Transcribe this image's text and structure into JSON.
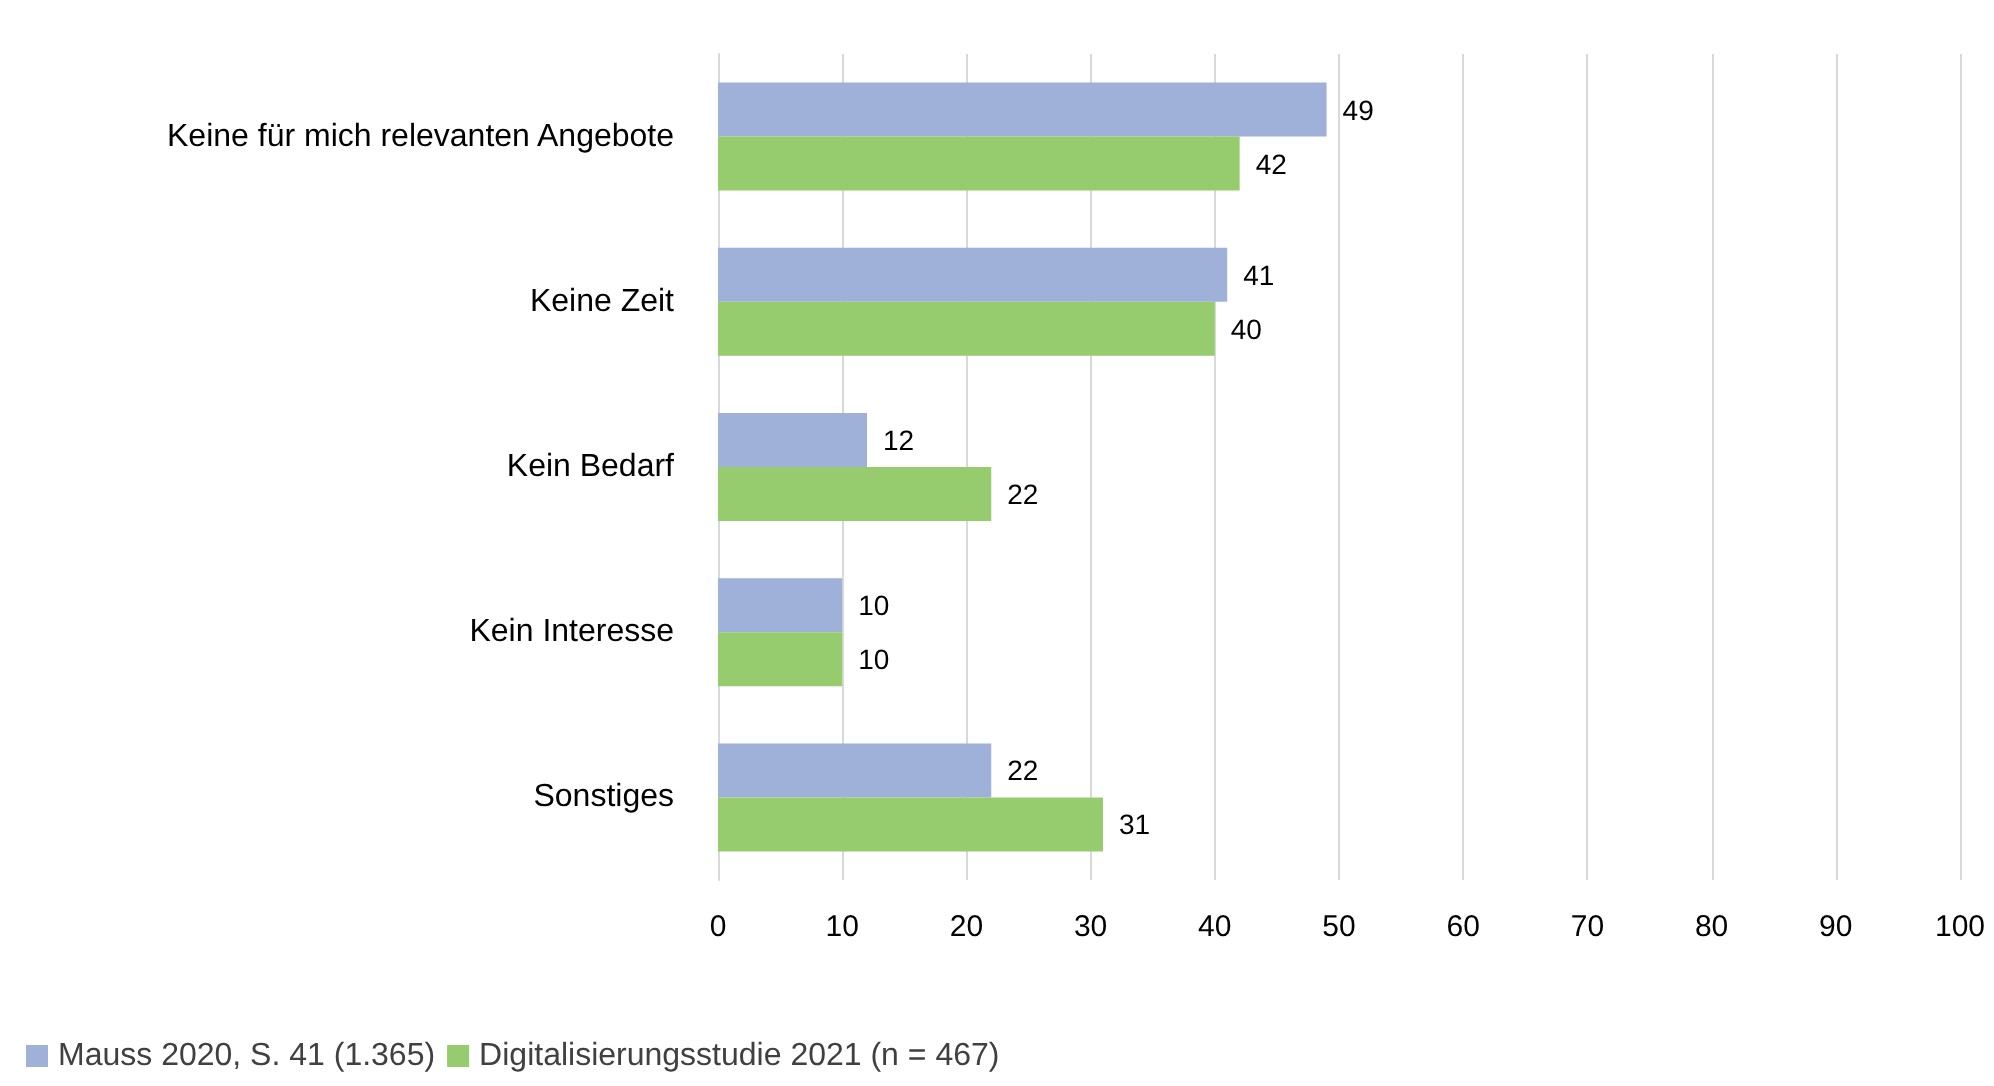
{
  "chart_data": {
    "type": "bar",
    "orientation": "horizontal",
    "categories": [
      "Keine für mich relevanten Angebote",
      "Keine Zeit",
      "Kein Bedarf",
      "Kein Interesse",
      "Sonstiges"
    ],
    "series": [
      {
        "name": "Mauss 2020, S. 41 (1.365)",
        "color": "#9fb1d8",
        "values": [
          49,
          41,
          12,
          10,
          22
        ]
      },
      {
        "name": "Digitalisierungsstudie 2021 (n = 467)",
        "color": "#96cb6e",
        "values": [
          42,
          40,
          22,
          10,
          31
        ]
      }
    ],
    "xlim": [
      0,
      100
    ],
    "xticks": [
      0,
      10,
      20,
      30,
      40,
      50,
      60,
      70,
      80,
      90,
      100
    ],
    "grid": "x",
    "legend": "bottom left",
    "data_labels": true
  }
}
